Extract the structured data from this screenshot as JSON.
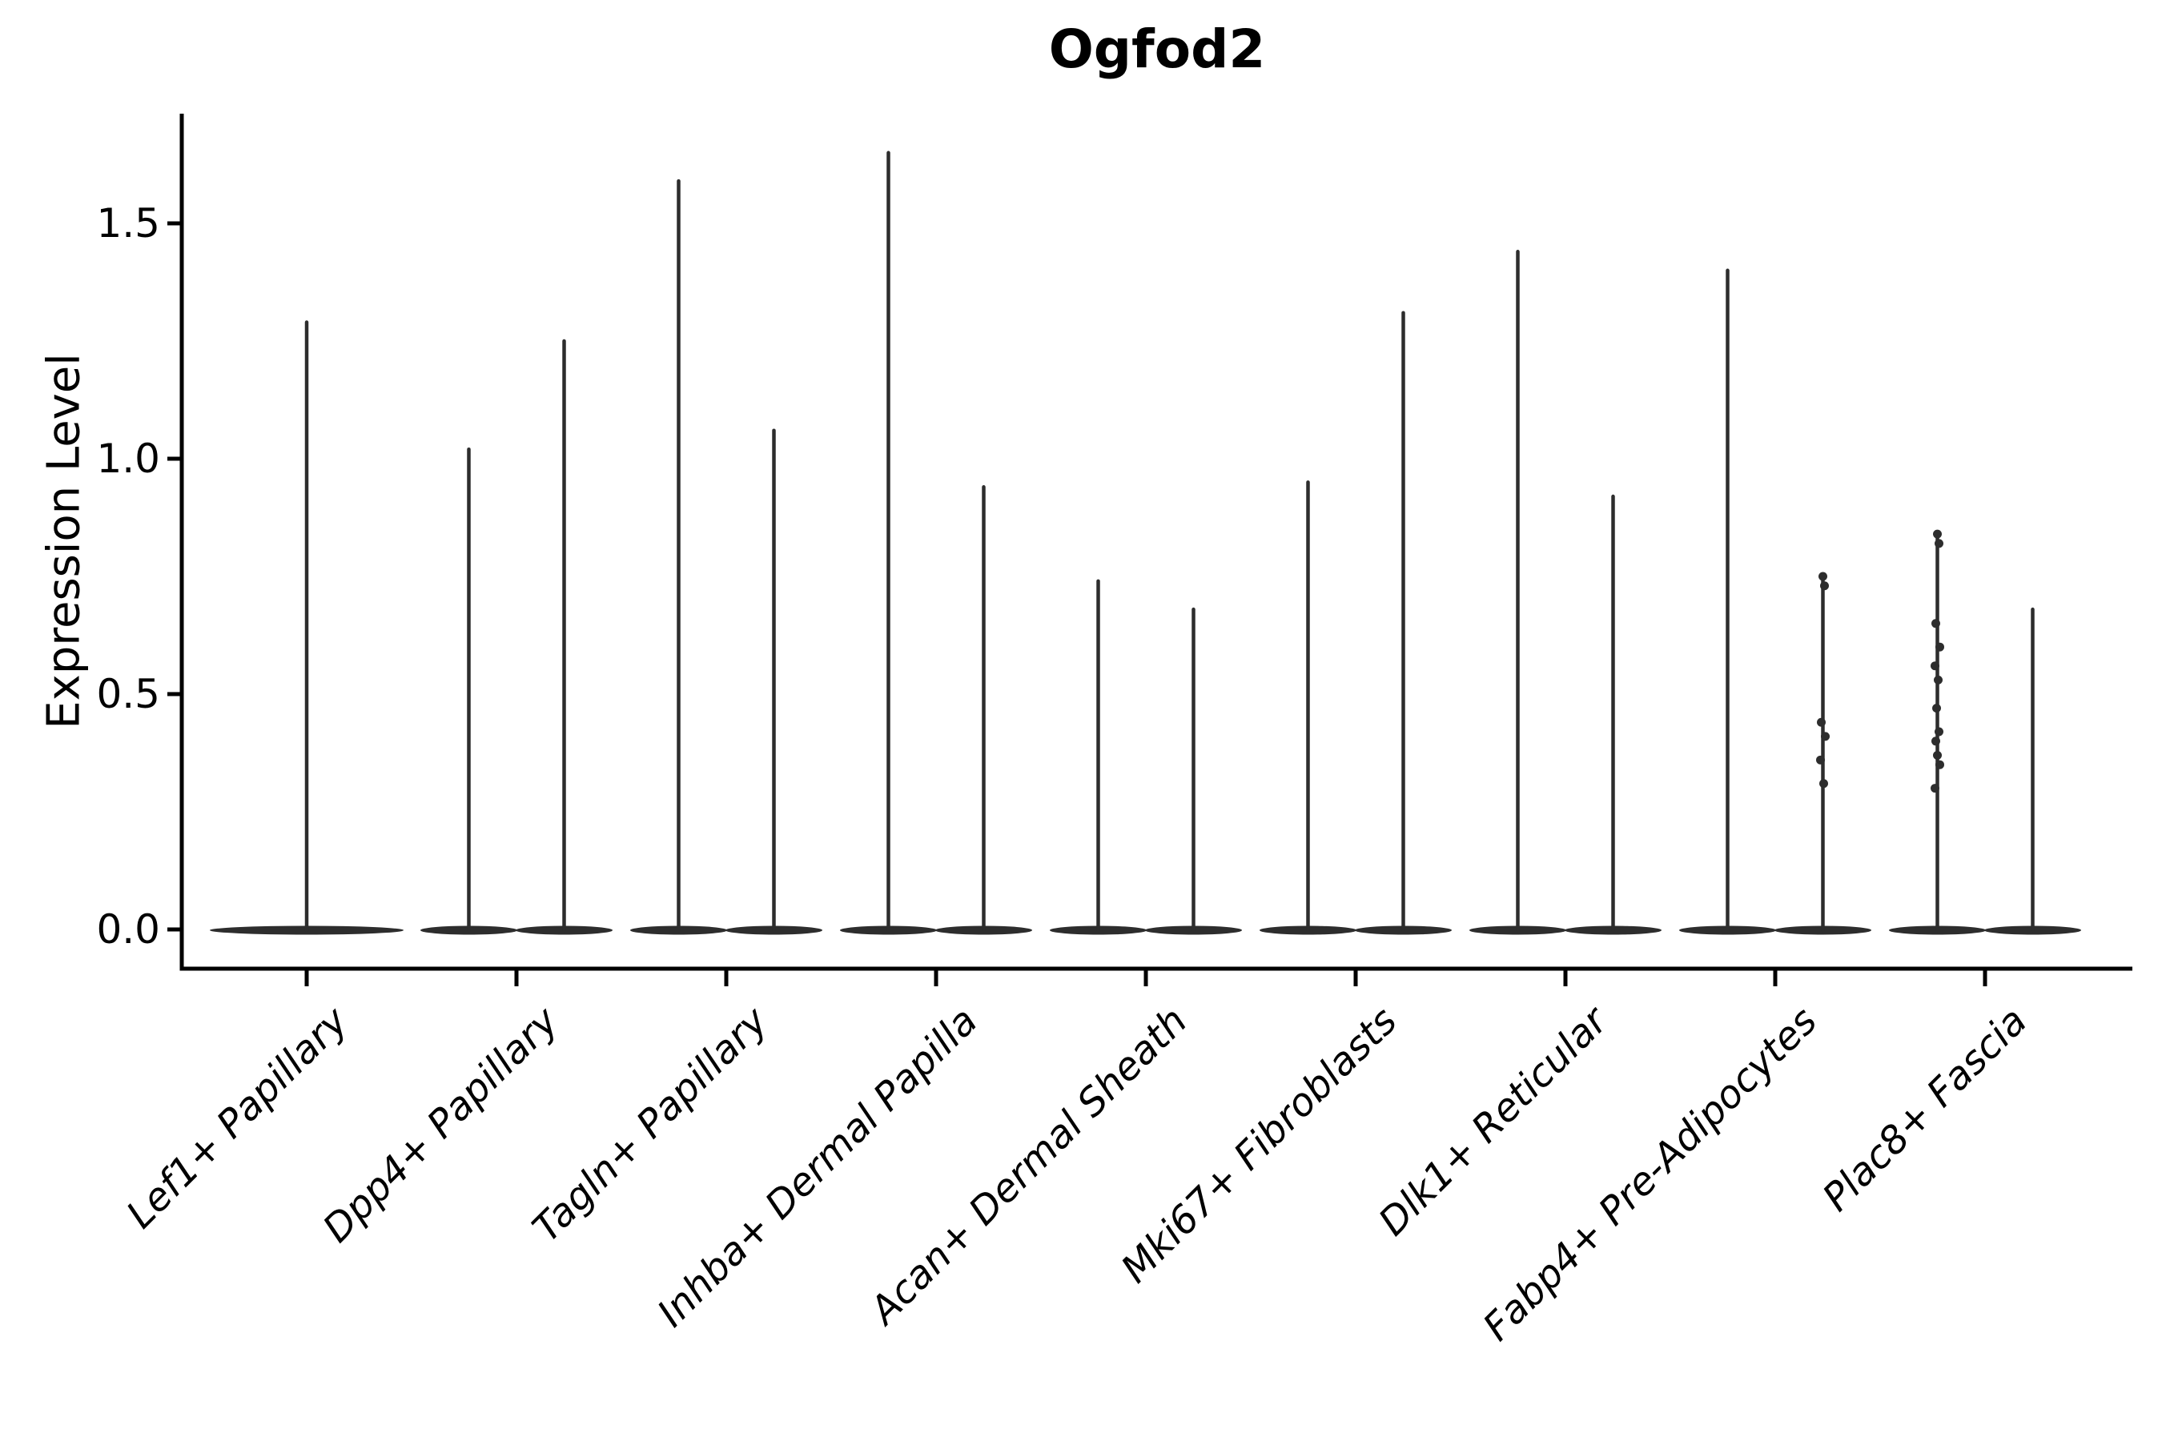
{
  "chart_data": {
    "type": "violin",
    "title": "Ogfod2",
    "ylabel": "Expression Level",
    "xlabel": "",
    "grid": false,
    "legend": null,
    "ylim": [
      -0.09,
      1.73
    ],
    "y_ticks": [
      {
        "label": "0.0",
        "value": 0.0
      },
      {
        "label": "0.5",
        "value": 0.5
      },
      {
        "label": "1.0",
        "value": 1.0
      },
      {
        "label": "1.5",
        "value": 1.5
      }
    ],
    "categories": [
      {
        "label": "Lef1+ Papillary",
        "violins": [
          {
            "max": 1.29,
            "dots": []
          }
        ]
      },
      {
        "label": "Dpp4+ Papillary",
        "violins": [
          {
            "max": 1.02,
            "dots": []
          },
          {
            "max": 1.25,
            "dots": []
          }
        ]
      },
      {
        "label": "Tagln+ Papillary",
        "violins": [
          {
            "max": 1.59,
            "dots": []
          },
          {
            "max": 1.06,
            "dots": []
          }
        ]
      },
      {
        "label": "Inhba+ Dermal Papilla",
        "violins": [
          {
            "max": 1.65,
            "dots": []
          },
          {
            "max": 0.94,
            "dots": []
          }
        ]
      },
      {
        "label": "Acan+ Dermal Sheath",
        "violins": [
          {
            "max": 0.74,
            "dots": []
          },
          {
            "max": 0.68,
            "dots": []
          }
        ]
      },
      {
        "label": "Mki67+ Fibroblasts",
        "violins": [
          {
            "max": 0.95,
            "dots": []
          },
          {
            "max": 1.31,
            "dots": []
          }
        ]
      },
      {
        "label": "Dlk1+ Reticular",
        "violins": [
          {
            "max": 1.44,
            "dots": []
          },
          {
            "max": 0.92,
            "dots": []
          }
        ]
      },
      {
        "label": "Fabp4+ Pre-Adipocytes",
        "violins": [
          {
            "max": 1.4,
            "dots": []
          },
          {
            "max": 0.75,
            "dots": [
              0.75,
              0.73,
              0.44,
              0.41,
              0.36,
              0.31
            ]
          }
        ]
      },
      {
        "label": "Plac8+ Fascia",
        "violins": [
          {
            "max": 0.84,
            "dots": [
              0.84,
              0.82,
              0.65,
              0.6,
              0.56,
              0.53,
              0.47,
              0.42,
              0.4,
              0.37,
              0.35,
              0.3
            ]
          },
          {
            "max": 0.68,
            "dots": []
          }
        ]
      }
    ],
    "colors": {
      "violin": "#2d2d2d",
      "axis": "#000000",
      "text": "#000000",
      "background": "#ffffff"
    }
  }
}
